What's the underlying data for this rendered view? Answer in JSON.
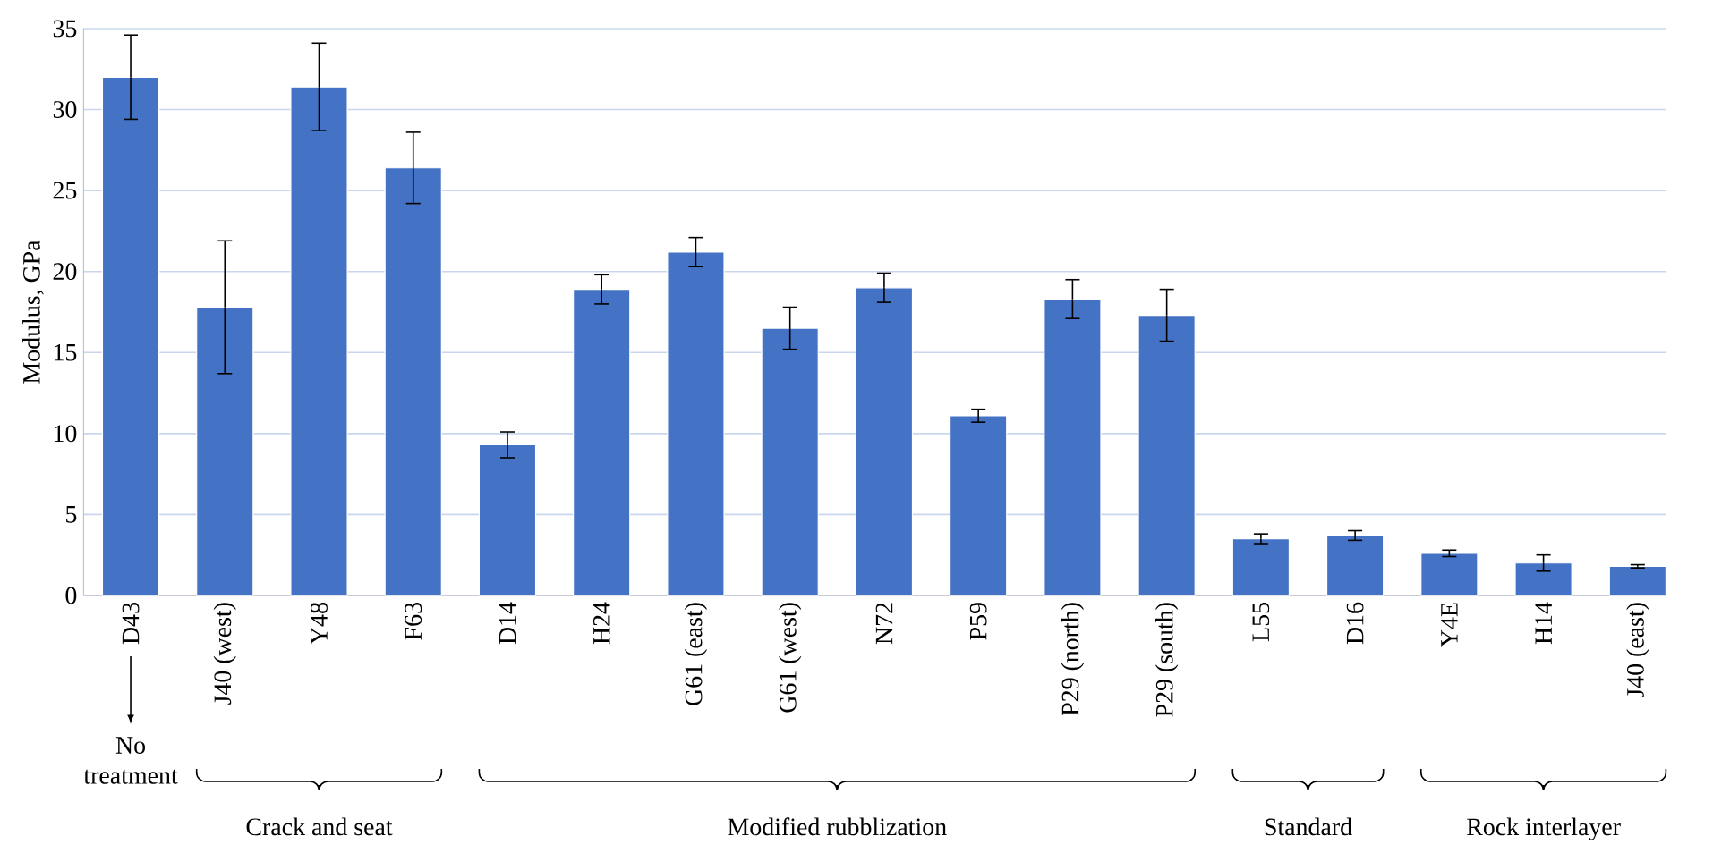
{
  "chart_data": {
    "type": "bar",
    "ylabel": "Modulus, GPa",
    "categories": [
      "D43",
      "J40 (west)",
      "Y48",
      "F63",
      "D14",
      "H24",
      "G61 (east)",
      "G61 (west)",
      "N72",
      "P59",
      "P29 (north)",
      "P29 (south)",
      "L55",
      "D16",
      "Y4E",
      "H14",
      "J40 (east)"
    ],
    "values": [
      32.0,
      17.8,
      31.4,
      26.4,
      9.3,
      18.9,
      21.2,
      16.5,
      19.0,
      11.1,
      18.3,
      17.3,
      3.5,
      3.7,
      2.6,
      2.0,
      1.8
    ],
    "errors": [
      2.6,
      4.1,
      2.7,
      2.2,
      0.8,
      0.9,
      0.9,
      1.3,
      0.9,
      0.4,
      1.2,
      1.6,
      0.3,
      0.3,
      0.2,
      0.5,
      0.1
    ],
    "color": "#4472c4",
    "ylim": [
      0,
      35
    ],
    "yticks": [
      0,
      5,
      10,
      15,
      20,
      25,
      30,
      35
    ],
    "grid": "y",
    "annotations": [
      "No treatment",
      "Crack and seat",
      "Modified rubblization",
      "Standard",
      "Rock interlayer"
    ]
  }
}
